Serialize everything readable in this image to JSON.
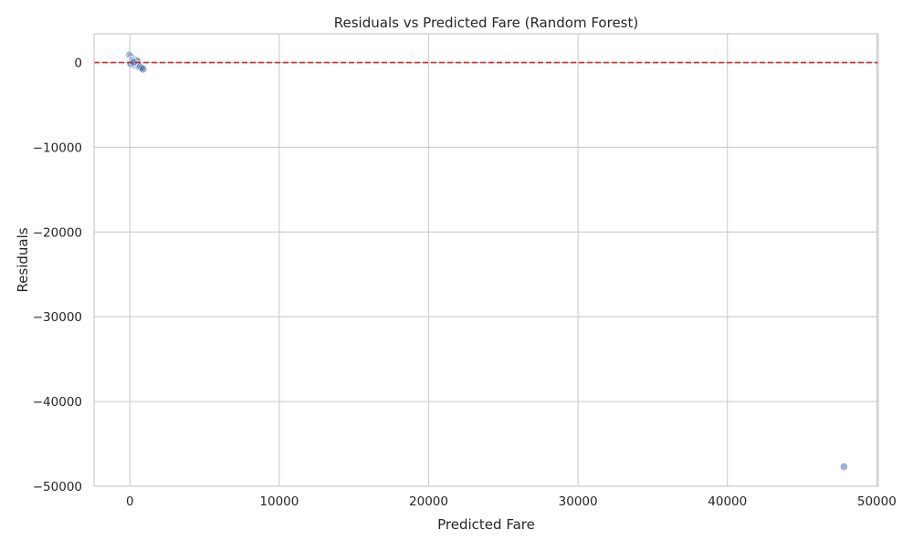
{
  "chart_data": {
    "type": "scatter",
    "title": "Residuals vs Predicted Fare (Random Forest)",
    "xlabel": "Predicted Fare",
    "ylabel": "Residuals",
    "xlim": [
      -2400,
      50100
    ],
    "ylim": [
      -50000,
      3400
    ],
    "x_ticks": [
      0,
      10000,
      20000,
      30000,
      40000,
      50000
    ],
    "y_ticks": [
      0,
      -10000,
      -20000,
      -30000,
      -40000,
      -50000
    ],
    "x_tick_labels": [
      "0",
      "10000",
      "20000",
      "30000",
      "40000",
      "50000"
    ],
    "y_tick_labels": [
      "0",
      "−10000",
      "−20000",
      "−30000",
      "−40000",
      "−50000"
    ],
    "grid": true,
    "reference_line": {
      "y": 0,
      "style": "dashed",
      "color": "#d62728"
    },
    "point_color": "#4c72b0",
    "points": [
      {
        "x": -30,
        "y": 900
      },
      {
        "x": 60,
        "y": 700
      },
      {
        "x": 150,
        "y": 500
      },
      {
        "x": 250,
        "y": 380
      },
      {
        "x": 330,
        "y": 280
      },
      {
        "x": 420,
        "y": 250
      },
      {
        "x": 500,
        "y": 150
      },
      {
        "x": 80,
        "y": 300
      },
      {
        "x": 120,
        "y": 180
      },
      {
        "x": 200,
        "y": 120
      },
      {
        "x": 10,
        "y": 100
      },
      {
        "x": 40,
        "y": 60
      },
      {
        "x": 20,
        "y": 20
      },
      {
        "x": 5,
        "y": -10
      },
      {
        "x": 30,
        "y": -60
      },
      {
        "x": 60,
        "y": -100
      },
      {
        "x": 100,
        "y": -20
      },
      {
        "x": 140,
        "y": 40
      },
      {
        "x": 180,
        "y": -40
      },
      {
        "x": 220,
        "y": -80
      },
      {
        "x": 260,
        "y": -150
      },
      {
        "x": 300,
        "y": -200
      },
      {
        "x": 350,
        "y": -300
      },
      {
        "x": 400,
        "y": -380
      },
      {
        "x": 450,
        "y": -250
      },
      {
        "x": 520,
        "y": -150
      },
      {
        "x": 560,
        "y": -420
      },
      {
        "x": 620,
        "y": -500
      },
      {
        "x": 700,
        "y": -480
      },
      {
        "x": 780,
        "y": -620
      },
      {
        "x": 880,
        "y": -780
      },
      {
        "x": 150,
        "y": 200
      },
      {
        "x": 70,
        "y": -150
      },
      {
        "x": 250,
        "y": 50
      },
      {
        "x": 47800,
        "y": -47700
      }
    ]
  }
}
